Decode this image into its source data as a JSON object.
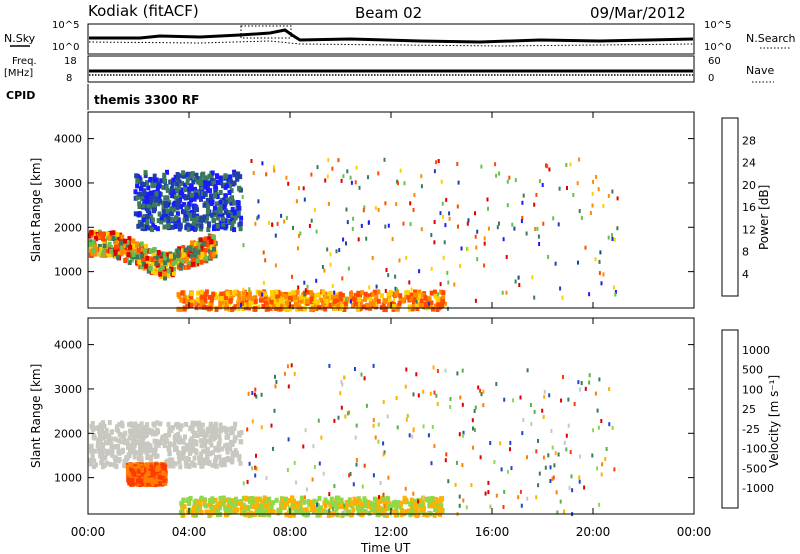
{
  "header": {
    "station": "Kodiak (fitACF)",
    "beam": "Beam 02",
    "date": "09/Mar/2012"
  },
  "summary_panels": {
    "nsky_label": "N.Sky",
    "nsearch_label": "N.Search",
    "noise_ticks": [
      "10^5",
      "10^0"
    ],
    "freq_label_line1": "Freq.",
    "freq_label_line2": "[MHz]",
    "freq_ticks": [
      "18",
      "8"
    ],
    "nave_label": "Nave",
    "nave_ticks": [
      "60",
      "0"
    ],
    "cpid_label": "CPID",
    "cpid_text": "themis 3300 RF"
  },
  "chart_data": [
    {
      "type": "heatmap",
      "title": "",
      "xlabel": "Time UT",
      "ylabel": "Slant Range [km]",
      "x_ticks": [
        "00:00",
        "04:00",
        "08:00",
        "12:00",
        "16:00",
        "20:00",
        "00:00"
      ],
      "x_hours": [
        0,
        4,
        8,
        12,
        16,
        20,
        24
      ],
      "xlim": [
        0,
        24
      ],
      "y_ticks": [
        1000,
        2000,
        3000,
        4000
      ],
      "ylim": [
        180,
        4600
      ],
      "colorbar": {
        "label": "Power [dB]",
        "ticks": [
          "4",
          "8",
          "12",
          "16",
          "20",
          "24",
          "28"
        ],
        "colors": [
          "#1a1aff",
          "#2040a8",
          "#3a7a5a",
          "#6abf50",
          "#ffd000",
          "#ff8a00",
          "#ff4a00",
          "#e00000"
        ]
      },
      "regions": [
        {
          "t": [
            0.0,
            5.0
          ],
          "r": [
            1400,
            1950
          ],
          "value": "12-28 dB",
          "note": "strong echo band peaking ~1100 km near 03:00"
        },
        {
          "t": [
            1.8,
            6.0
          ],
          "r": [
            2000,
            3300
          ],
          "value": "4-12 dB"
        },
        {
          "t": [
            3.5,
            14.0
          ],
          "r": [
            200,
            600
          ],
          "value": "16-24 dB",
          "note": "near-range echoes"
        },
        {
          "t": [
            6.0,
            21.0
          ],
          "r": [
            200,
            3600
          ],
          "value": "4-24 dB",
          "note": "sparse scatter"
        }
      ]
    },
    {
      "type": "heatmap",
      "title": "",
      "xlabel": "Time UT",
      "ylabel": "Slant Range [km]",
      "x_ticks": [
        "00:00",
        "04:00",
        "08:00",
        "12:00",
        "16:00",
        "20:00",
        "00:00"
      ],
      "x_hours": [
        0,
        4,
        8,
        12,
        16,
        20,
        24
      ],
      "xlim": [
        0,
        24
      ],
      "y_ticks": [
        1000,
        2000,
        3000,
        4000
      ],
      "ylim": [
        180,
        4600
      ],
      "colorbar": {
        "label": "Velocity [m s⁻¹]",
        "ticks": [
          "1000",
          "500",
          "100",
          "25",
          "-25",
          "-100",
          "-500",
          "-1000"
        ],
        "colors": [
          "#2244cc",
          "#3a7a5a",
          "#5ab04a",
          "#8ed84a",
          "#c8c8c0",
          "#ffb000",
          "#ff8000",
          "#ff3a00",
          "#e00000"
        ]
      },
      "regions": [
        {
          "t": [
            0.0,
            6.0
          ],
          "r": [
            1300,
            2300
          ],
          "value": "-25 to 25 m/s",
          "note": "ground scatter band"
        },
        {
          "t": [
            1.5,
            3.0
          ],
          "r": [
            900,
            1350
          ],
          "value": "-500 to -100 m/s"
        },
        {
          "t": [
            3.5,
            14.0
          ],
          "r": [
            200,
            600
          ],
          "value": "-100 to 100 m/s"
        },
        {
          "t": [
            6.0,
            21.0
          ],
          "r": [
            200,
            3600
          ],
          "value": "-1000 to 1000 m/s",
          "note": "sparse scatter"
        }
      ]
    }
  ]
}
